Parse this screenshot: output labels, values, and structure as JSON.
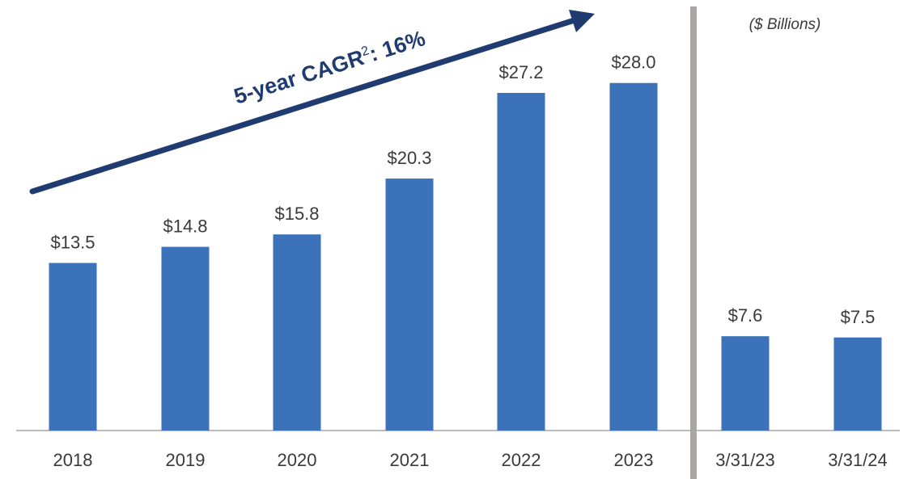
{
  "chart_data": {
    "type": "bar",
    "categories": [
      "2018",
      "2019",
      "2020",
      "2021",
      "2022",
      "2023",
      "3/31/23",
      "3/31/24"
    ],
    "values": [
      13.5,
      14.8,
      15.8,
      20.3,
      27.2,
      28.0,
      7.6,
      7.5
    ],
    "value_labels": [
      "$13.5",
      "$14.8",
      "$15.8",
      "$20.3",
      "$27.2",
      "$28.0",
      "$7.6",
      "$7.5"
    ],
    "color": "#3b72b9",
    "ylim": [
      0,
      30
    ],
    "unit_label": "($ Billions)",
    "annotation": {
      "text": "5-year CAGR",
      "superscript": "2",
      "suffix": ": 16%"
    }
  }
}
